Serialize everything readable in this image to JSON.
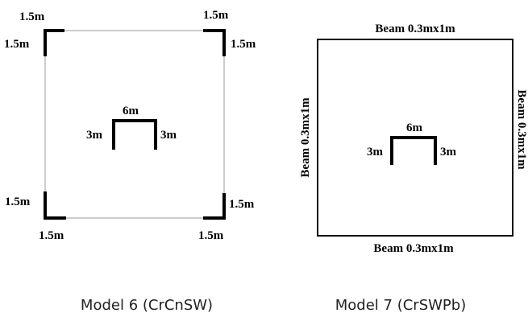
{
  "model6": {
    "caption": "Model 6 (CrCnSW)",
    "corner_walls": {
      "top_left": {
        "h": "1.5m",
        "v": "1.5m"
      },
      "top_right": {
        "h": "1.5m",
        "v": "1.5m"
      },
      "bottom_left": {
        "h": "1.5m",
        "v": "1.5m"
      },
      "bottom_right": {
        "h": "1.5m",
        "v": "1.5m"
      }
    },
    "core": {
      "top": "6m",
      "left": "3m",
      "right": "3m"
    }
  },
  "model7": {
    "caption": "Model 7 (CrSWPb)",
    "beams": {
      "top": "Beam 0.3mx1m",
      "bottom": "Beam 0.3mx1m",
      "left": "Beam 0.3mx1m",
      "right": "Beam 0.3mx1m"
    },
    "core": {
      "top": "6m",
      "left": "3m",
      "right": "3m"
    }
  }
}
